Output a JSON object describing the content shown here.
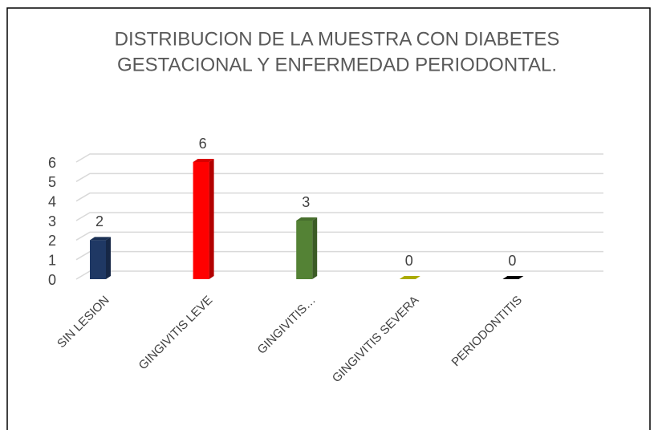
{
  "chart_data": {
    "type": "bar",
    "title": [
      "DISTRIBUCION DE LA MUESTRA CON DIABETES",
      "GESTACIONAL Y ENFERMEDAD PERIODONTAL."
    ],
    "categories": [
      "SIN LESION",
      "GINGIVITIS LEVE",
      "GINGIVITIS…",
      "GINGIVITIS SEVERA",
      "PERIODONTITIS"
    ],
    "values": [
      2,
      6,
      3,
      0,
      0
    ],
    "colors": [
      "#1f3864",
      "#ff0000",
      "#548235",
      "#c9c900",
      "#000000"
    ],
    "ylim": [
      0,
      6
    ],
    "yticks": [
      0,
      1,
      2,
      3,
      4,
      5,
      6
    ],
    "grid": true
  }
}
